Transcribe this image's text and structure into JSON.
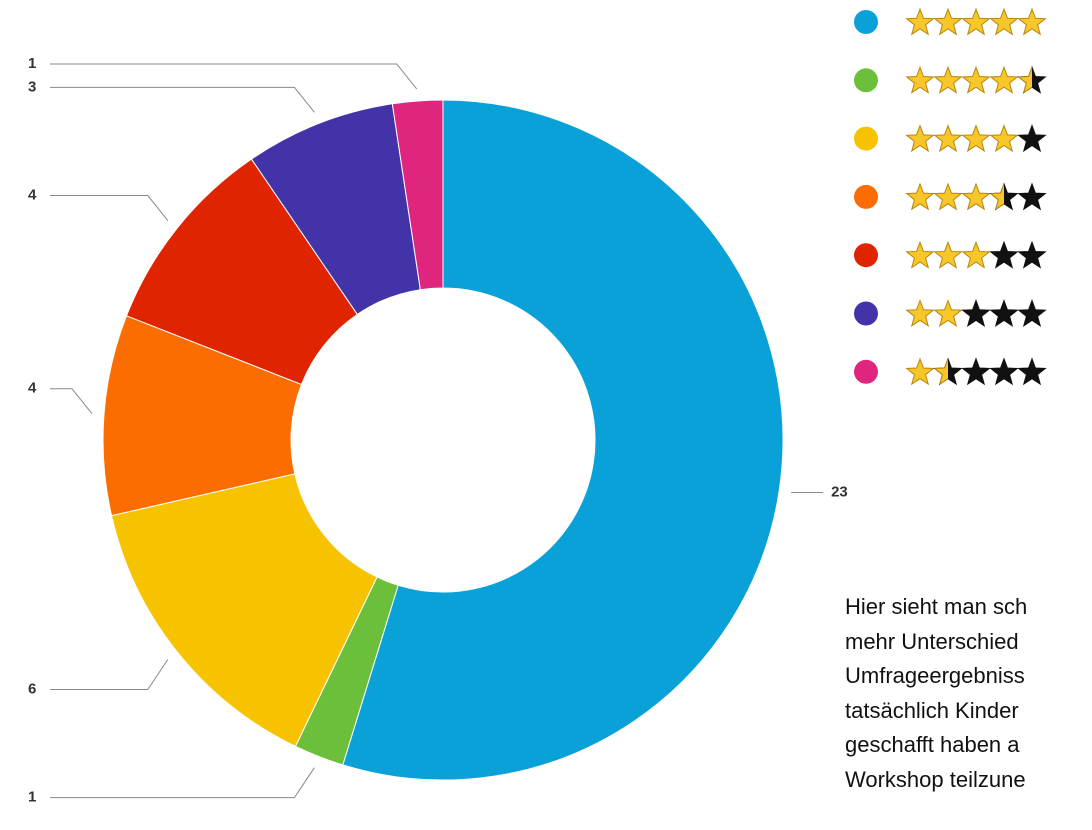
{
  "chart_data": {
    "type": "donut",
    "categories": [
      5,
      4.5,
      4,
      3.5,
      3,
      2,
      1.5
    ],
    "values": [
      23,
      1,
      6,
      4,
      4,
      3,
      1
    ],
    "colors": [
      "#0aa0d8",
      "#6bbf3b",
      "#f7c300",
      "#fb6d00",
      "#e02400",
      "#4333a8",
      "#e0257f"
    ],
    "legend_position": "top-right"
  },
  "text": [
    "Hier sieht man sch",
    "mehr Unterschied",
    "Umfrageergebniss",
    "tatsächlich Kinder",
    "geschafft haben a",
    "Workshop teilzune"
  ]
}
